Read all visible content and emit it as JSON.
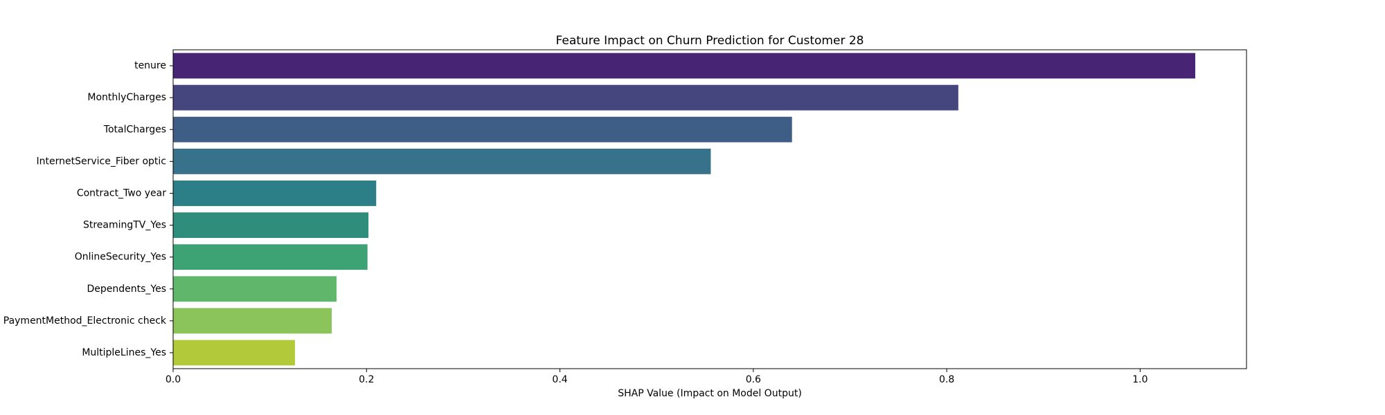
{
  "chart_data": {
    "type": "bar",
    "orientation": "horizontal",
    "title": "Feature Impact on Churn Prediction for Customer 28",
    "xlabel": "SHAP Value (Impact on Model Output)",
    "ylabel": "",
    "xlim": [
      0,
      1.11
    ],
    "xticks": [
      0.0,
      0.2,
      0.4,
      0.6,
      0.8,
      1.0
    ],
    "xtick_labels": [
      "0.0",
      "0.2",
      "0.4",
      "0.6",
      "0.8",
      "1.0"
    ],
    "grid": false,
    "categories": [
      "tenure",
      "MonthlyCharges",
      "TotalCharges",
      "InternetService_Fiber optic",
      "Contract_Two year",
      "StreamingTV_Yes",
      "OnlineSecurity_Yes",
      "Dependents_Yes",
      "PaymentMethod_Electronic check",
      "MultipleLines_Yes"
    ],
    "values": [
      1.057,
      0.812,
      0.64,
      0.556,
      0.21,
      0.202,
      0.201,
      0.169,
      0.164,
      0.126
    ],
    "colors": [
      "#482475",
      "#46467e",
      "#3f5e85",
      "#37718a",
      "#2d7f87",
      "#2f8d7c",
      "#3ea374",
      "#60b76c",
      "#8ac45a",
      "#b2c93a"
    ]
  }
}
